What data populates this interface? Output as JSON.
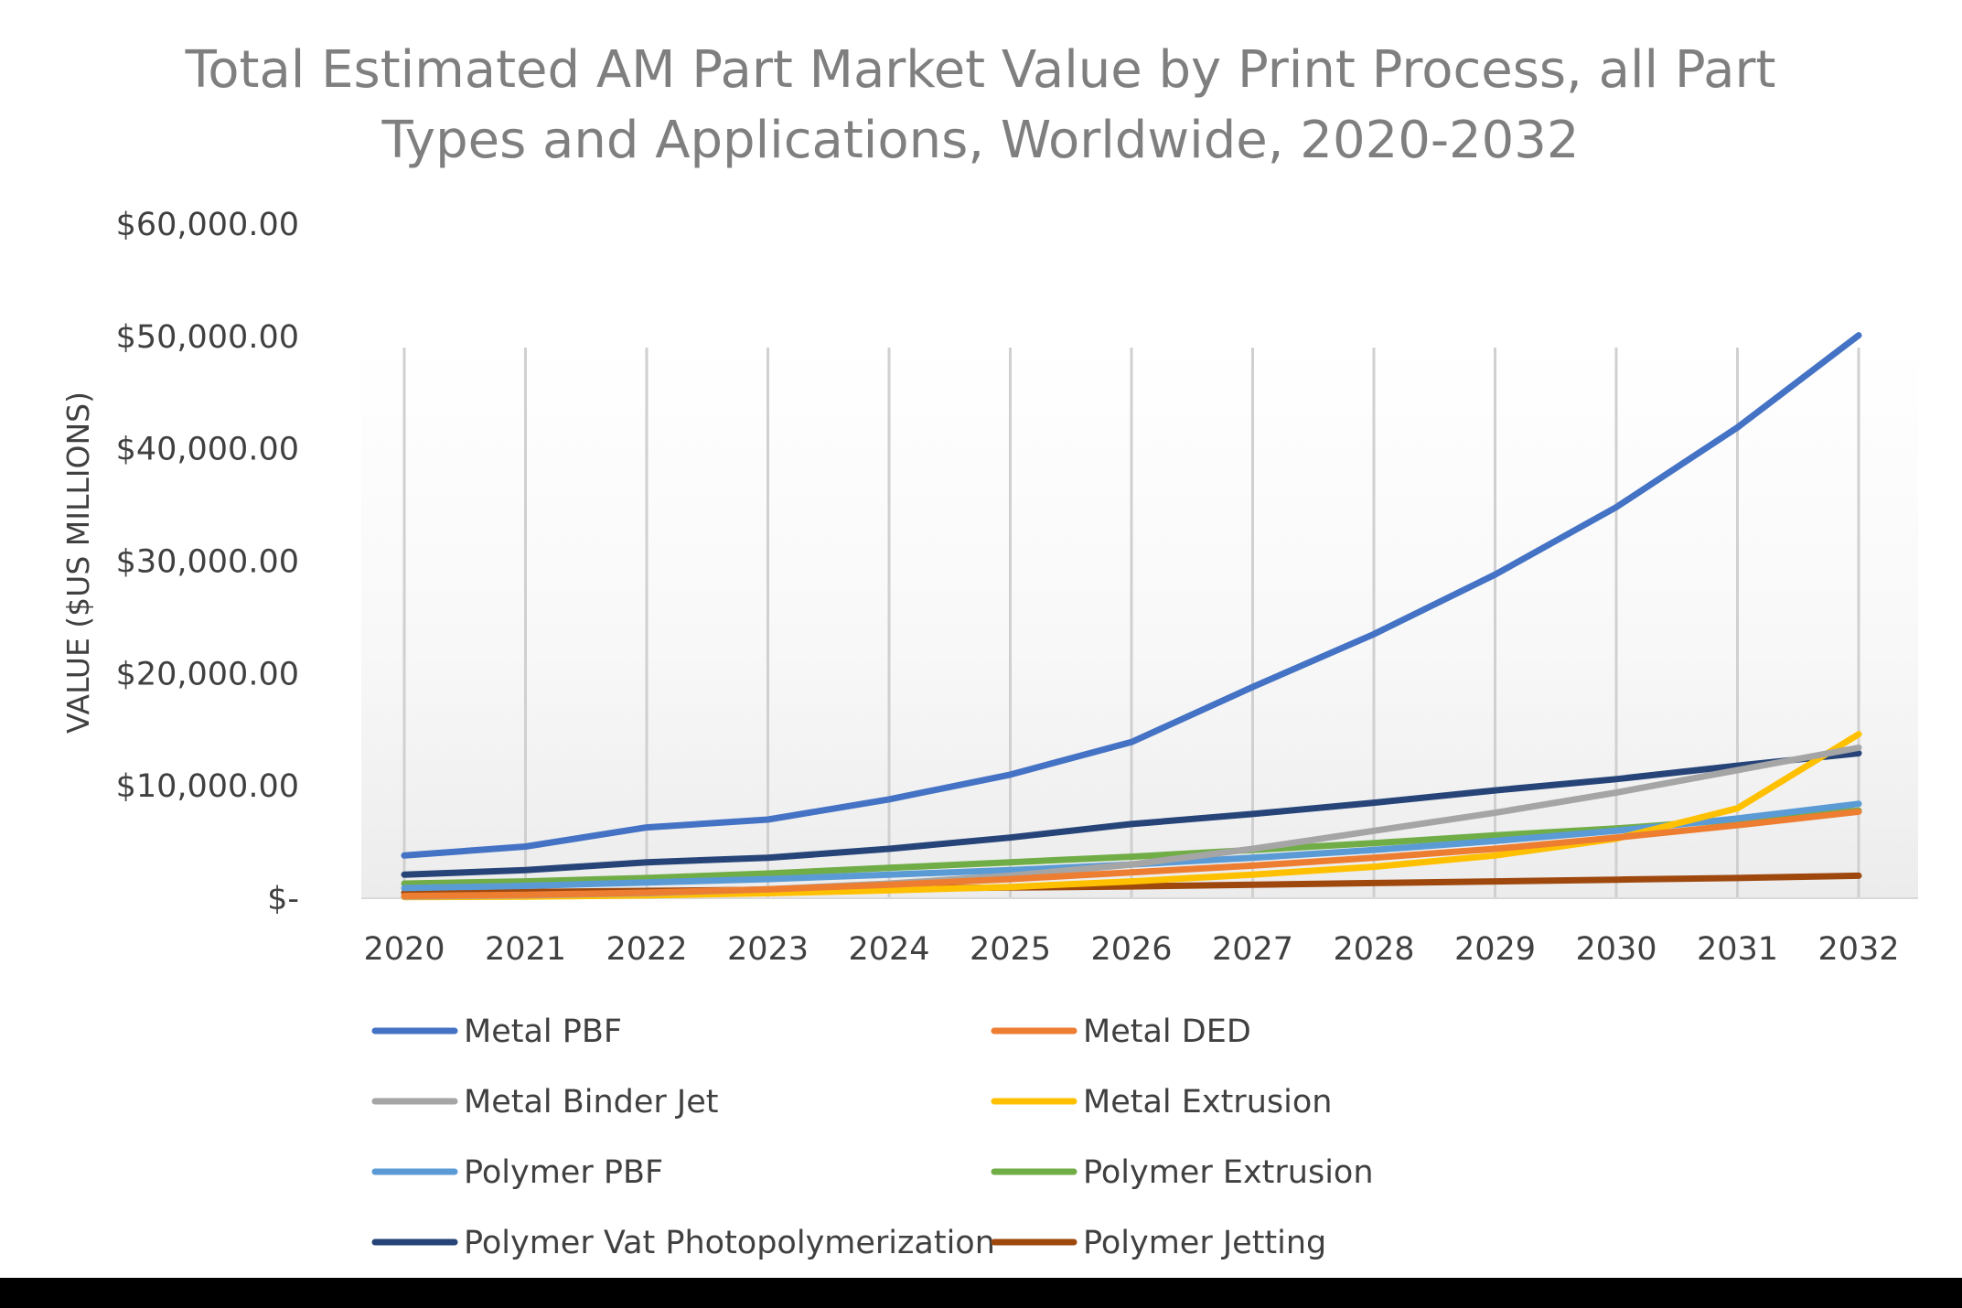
{
  "chart_data": {
    "type": "line",
    "title_lines": [
      "Total Estimated AM Part Market Value by Print Process, all Part",
      "Types and Applications, Worldwide, 2020-2032"
    ],
    "xlabel": "",
    "ylabel": "VALUE ($US MILLIONS)",
    "ylim": [
      0,
      60000
    ],
    "y_ticks": [
      {
        "value": 0,
        "label": "$-"
      },
      {
        "value": 10000,
        "label": "$10,000.00"
      },
      {
        "value": 20000,
        "label": "$20,000.00"
      },
      {
        "value": 30000,
        "label": "$30,000.00"
      },
      {
        "value": 40000,
        "label": "$40,000.00"
      },
      {
        "value": 50000,
        "label": "$50,000.00"
      },
      {
        "value": 60000,
        "label": "$60,000.00"
      }
    ],
    "categories": [
      "2020",
      "2021",
      "2022",
      "2023",
      "2024",
      "2025",
      "2026",
      "2027",
      "2028",
      "2029",
      "2030",
      "2031",
      "2032"
    ],
    "vertical_gridlines": true,
    "background_gradient": true,
    "legend_position": "bottom",
    "series": [
      {
        "name": "Metal PBF",
        "color": "#4472c4",
        "values": [
          3800,
          4600,
          6300,
          7000,
          8800,
          11000,
          13900,
          18800,
          23500,
          28800,
          34800,
          41900,
          50100
        ]
      },
      {
        "name": "Metal DED",
        "color": "#ed7d31",
        "values": [
          200,
          300,
          500,
          800,
          1200,
          1700,
          2300,
          2900,
          3600,
          4400,
          5400,
          6500,
          7700
        ]
      },
      {
        "name": "Metal Binder Jet",
        "color": "#a5a5a5",
        "values": [
          150,
          250,
          450,
          800,
          1300,
          2000,
          3000,
          4400,
          6000,
          7600,
          9400,
          11400,
          13400
        ]
      },
      {
        "name": "Metal Extrusion",
        "color": "#ffc000",
        "values": [
          100,
          150,
          250,
          450,
          700,
          1000,
          1500,
          2100,
          2800,
          3800,
          5300,
          8000,
          14600
        ]
      },
      {
        "name": "Polymer PBF",
        "color": "#5b9bd5",
        "values": [
          900,
          1100,
          1400,
          1700,
          2100,
          2500,
          3000,
          3600,
          4300,
          5100,
          6000,
          7100,
          8400
        ]
      },
      {
        "name": "Polymer Extrusion",
        "color": "#70ad47",
        "values": [
          1300,
          1500,
          1800,
          2200,
          2700,
          3200,
          3700,
          4300,
          4900,
          5600,
          6200,
          7000,
          7800
        ]
      },
      {
        "name": "Polymer Vat Photopolymerization",
        "color": "#264478",
        "values": [
          2100,
          2500,
          3200,
          3600,
          4400,
          5400,
          6600,
          7500,
          8500,
          9600,
          10600,
          11800,
          12900
        ]
      },
      {
        "name": "Polymer Jetting",
        "color": "#9e480e",
        "values": [
          500,
          550,
          650,
          750,
          850,
          950,
          1050,
          1200,
          1350,
          1500,
          1650,
          1800,
          2000
        ]
      }
    ]
  }
}
